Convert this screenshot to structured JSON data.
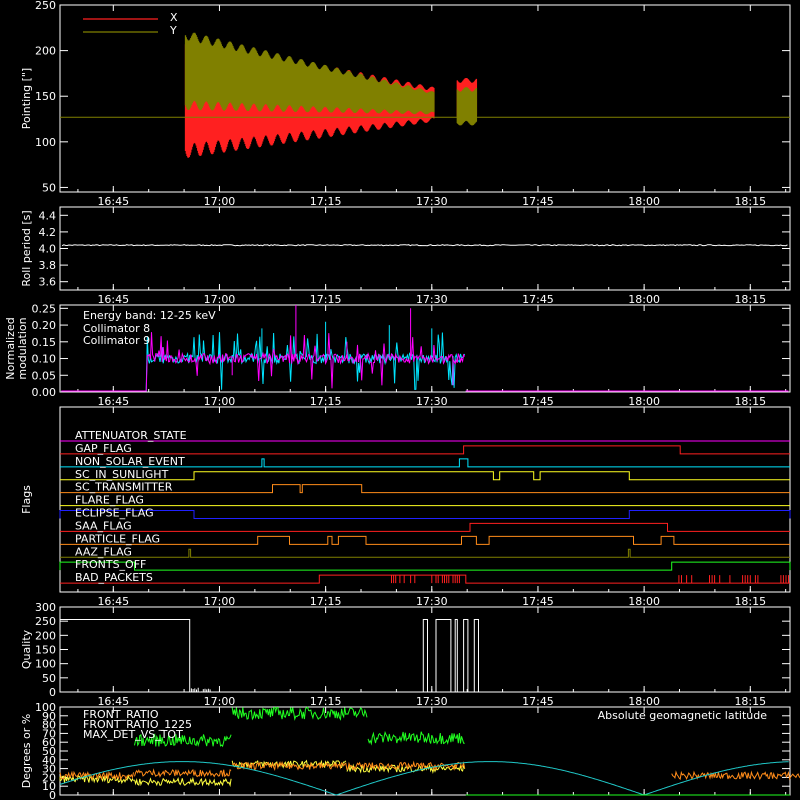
{
  "colors": {
    "bg": "#000000",
    "axis": "#ffffff",
    "x": "#ff2020",
    "y": "#808000",
    "ref": "#808000",
    "roll": "#ffffff",
    "c8": "#00e5ff",
    "c9": "#ff00ff",
    "quality": "#ffffff",
    "front_ratio": "#ffff40",
    "front_ratio_1225": "#20ff20",
    "max_det": "#ff8c1a",
    "geomag": "#20c8c8"
  },
  "chart_data": [
    {
      "id": "pointing",
      "type": "line",
      "ylabel": "Pointing [\"]",
      "ylim": [
        45,
        250
      ],
      "yticks": [
        50,
        100,
        150,
        200,
        250
      ],
      "xticks": [
        "16:45",
        "17:00",
        "17:15",
        "17:30",
        "17:45",
        "18:00",
        "18:15"
      ],
      "reference_line": 127,
      "series": [
        {
          "name": "X",
          "color": "x",
          "segments": [
            {
              "t0": 16.92,
              "t1": 17.505,
              "upper": [
                [
                  16.92,
                  215
                ],
                [
                  17.505,
                  160
                ]
              ],
              "lower": [
                [
                  16.92,
                  82
                ],
                [
                  17.505,
                  122
                ]
              ]
            },
            {
              "t0": 17.56,
              "t1": 17.605,
              "upper": [
                [
                  17.56,
                  170
                ],
                [
                  17.605,
                  170
                ]
              ],
              "lower": [
                [
                  17.56,
                  125
                ],
                [
                  17.605,
                  125
                ]
              ]
            }
          ]
        },
        {
          "name": "Y",
          "color": "y",
          "segments": [
            {
              "t0": 16.92,
              "t1": 17.505,
              "upper": [
                [
                  16.92,
                  222
                ],
                [
                  17.505,
                  155
                ]
              ],
              "lower": [
                [
                  16.92,
                  135
                ],
                [
                  17.505,
                  130
                ]
              ]
            },
            {
              "t0": 17.56,
              "t1": 17.605,
              "upper": [
                [
                  17.56,
                  160
                ],
                [
                  17.605,
                  160
                ]
              ],
              "lower": [
                [
                  17.56,
                  118
                ],
                [
                  17.605,
                  118
                ]
              ]
            }
          ]
        }
      ]
    },
    {
      "id": "roll",
      "type": "line",
      "ylabel": "Roll period [s]",
      "ylim": [
        3.5,
        4.5
      ],
      "yticks": [
        3.6,
        3.8,
        4.0,
        4.2,
        4.4
      ],
      "ytick_labels": [
        "3.6",
        "3.8",
        "4.0",
        "4.2",
        "4.4"
      ],
      "xticks": [
        "16:45",
        "17:00",
        "17:15",
        "17:30",
        "17:45",
        "18:00",
        "18:15"
      ],
      "series": [
        {
          "name": "",
          "color": "roll",
          "constant": 4.04
        }
      ]
    },
    {
      "id": "modulation",
      "type": "line",
      "ylabel": [
        "Normalized",
        "modulation"
      ],
      "ylim": [
        0,
        0.26
      ],
      "yticks": [
        0,
        0.05,
        0.1,
        0.15,
        0.2,
        0.25
      ],
      "ytick_labels": [
        "0.00",
        "0.05",
        "0.10",
        "0.15",
        "0.20",
        "0.25"
      ],
      "xticks": [
        "16:45",
        "17:00",
        "17:15",
        "17:30",
        "17:45",
        "18:00",
        "18:15"
      ],
      "annotation": "Energy band: 12-25 keV",
      "series": [
        {
          "name": "Collimator 8",
          "color": "c8",
          "active": [
            16.83,
            17.58
          ],
          "level": 0.1,
          "spikes": [
            [
              17.0,
              0.17
            ],
            [
              17.1,
              0.19
            ],
            [
              17.25,
              0.21
            ],
            [
              17.4,
              0.2
            ],
            [
              17.5,
              0.19
            ]
          ]
        },
        {
          "name": "Collimator 9",
          "color": "c9",
          "active": [
            16.83,
            17.58
          ],
          "level": 0.1,
          "spikes": [
            [
              17.18,
              0.26
            ],
            [
              17.45,
              0.25
            ],
            [
              17.3,
              0.15
            ],
            [
              17.03,
              0.05
            ],
            [
              17.55,
              0.02
            ]
          ]
        }
      ]
    },
    {
      "id": "flags",
      "type": "line",
      "ylabel": "Flags",
      "xticks": [
        "16:45",
        "17:00",
        "17:15",
        "17:30",
        "17:45",
        "18:00",
        "18:15"
      ],
      "series": [
        {
          "name": "ATTENUATOR_STATE",
          "color": "#ff00ff",
          "steps": []
        },
        {
          "name": "GAP_FLAG",
          "color": "#ff2020",
          "steps": [
            [
              17.575,
              18.085
            ]
          ]
        },
        {
          "name": "NON_SOLAR_EVENT",
          "color": "#00e5ff",
          "steps": [
            [
              17.1,
              17.105
            ],
            [
              17.565,
              17.585
            ]
          ]
        },
        {
          "name": "SC_IN_SUNLIGHT",
          "color": "#ffff20",
          "steps": [
            [
              16.94,
              17.645
            ],
            [
              17.66,
              17.74
            ],
            [
              17.755,
              17.965
            ]
          ]
        },
        {
          "name": "SC_TRANSMITTER",
          "color": "#ff8c1a",
          "steps": [
            [
              17.125,
              17.19
            ],
            [
              17.195,
              17.335
            ]
          ]
        },
        {
          "name": "FLARE_FLAG",
          "color": "#ffff20",
          "steps": []
        },
        {
          "name": "ECLIPSE_FLAG",
          "color": "#2020ff",
          "steps": [
            [
              16.62,
              16.94
            ],
            [
              17.965,
              18.4
            ]
          ]
        },
        {
          "name": "SAA_FLAG",
          "color": "#ff2020",
          "steps": [
            [
              17.59,
              18.055
            ]
          ]
        },
        {
          "name": "PARTICLE_FLAG",
          "color": "#ff8c1a",
          "steps": [
            [
              17.09,
              17.165
            ],
            [
              17.255,
              17.265
            ],
            [
              17.28,
              17.345
            ],
            [
              17.57,
              17.605
            ],
            [
              17.635,
              17.975
            ],
            [
              18.04,
              18.07
            ]
          ]
        },
        {
          "name": "AAZ_FLAG",
          "color": "#808000",
          "steps": [
            [
              16.928,
              16.932
            ],
            [
              17.963,
              17.967
            ]
          ]
        },
        {
          "name": "FRONTS_OFF",
          "color": "#20ff20",
          "steps": [
            [
              16.62,
              16.8
            ],
            [
              18.065,
              18.4
            ]
          ]
        },
        {
          "name": "BAD_PACKETS",
          "color": "#ff2020",
          "steps": [
            [
              17.235,
              17.58
            ]
          ]
        }
      ]
    },
    {
      "id": "quality",
      "type": "line",
      "ylabel": "Quality",
      "ylim": [
        0,
        300
      ],
      "yticks": [
        0,
        50,
        100,
        150,
        200,
        250,
        300
      ],
      "xticks": [
        "16:45",
        "17:00",
        "17:15",
        "17:30",
        "17:45",
        "18:00",
        "18:15"
      ],
      "series": [
        {
          "name": "",
          "color": "quality",
          "segments": [
            [
              16.62,
              16.93,
              256
            ],
            [
              17.48,
              17.49,
              256
            ],
            [
              17.51,
              17.545,
              256
            ],
            [
              17.555,
              17.56,
              256
            ],
            [
              17.575,
              17.585,
              256
            ],
            [
              17.6,
              17.61,
              256
            ]
          ]
        }
      ]
    },
    {
      "id": "ratios",
      "type": "line",
      "ylabel": "Degrees or %",
      "ylim": [
        0,
        100
      ],
      "yticks": [
        0,
        10,
        20,
        30,
        40,
        50,
        60,
        70,
        80,
        90,
        100
      ],
      "xticks": [
        "16:45",
        "17:00",
        "17:15",
        "17:30",
        "17:45",
        "18:00",
        "18:15"
      ],
      "annotation": "Absolute geomagnetic latitude",
      "series": [
        {
          "name": "FRONT_RATIO",
          "color": "front_ratio",
          "levels": [
            [
              16.62,
              16.8,
              18
            ],
            [
              16.8,
              17.03,
              15
            ],
            [
              17.03,
              17.3,
              35
            ],
            [
              17.3,
              17.58,
              30
            ]
          ]
        },
        {
          "name": "FRONT_RATIO_1225",
          "color": "front_ratio_1225",
          "levels": [
            [
              16.8,
              17.03,
              62
            ],
            [
              17.03,
              17.35,
              93
            ],
            [
              17.35,
              17.58,
              65
            ]
          ]
        },
        {
          "name": "MAX_DET_VS_TOT",
          "color": "max_det",
          "levels": [
            [
              16.62,
              16.8,
              22
            ],
            [
              16.8,
              17.03,
              25
            ],
            [
              17.03,
              17.58,
              33
            ],
            [
              18.065,
              18.4,
              22
            ]
          ]
        },
        {
          "name": "",
          "color": "geomag",
          "wave": {
            "period": 0.725,
            "amp": 38,
            "zero": 16.55
          }
        }
      ]
    }
  ]
}
